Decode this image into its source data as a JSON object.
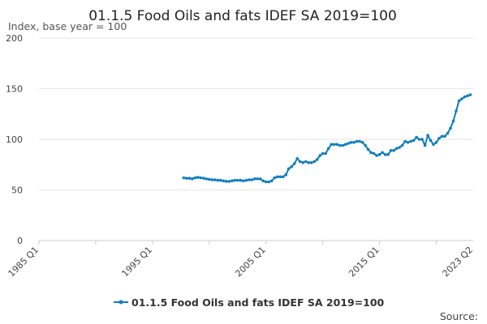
{
  "chart_data": {
    "type": "line",
    "title": "01.1.5 Food Oils and fats IDEF SA 2019=100",
    "ylabel": "Index, base year = 100",
    "xlabel": "",
    "ylim": [
      0,
      200
    ],
    "y_ticks": [
      0,
      50,
      100,
      150,
      200
    ],
    "x_tick_labels": [
      "1985 Q1",
      "1995 Q1",
      "2005 Q1",
      "2015 Q1",
      "2023 Q2"
    ],
    "grid": true,
    "legend_position": "bottom",
    "series": [
      {
        "name": "01.1.5 Food Oils and fats IDEF SA 2019=100",
        "color": "#0f7ec0",
        "points": [
          [
            "1997 Q4",
            62
          ],
          [
            "1998 Q1",
            61.5
          ],
          [
            "1998 Q2",
            61.5
          ],
          [
            "1998 Q3",
            61
          ],
          [
            "1998 Q4",
            62
          ],
          [
            "1999 Q1",
            62.5
          ],
          [
            "1999 Q2",
            62
          ],
          [
            "1999 Q3",
            61.5
          ],
          [
            "1999 Q4",
            61
          ],
          [
            "2000 Q1",
            60.5
          ],
          [
            "2000 Q2",
            60
          ],
          [
            "2000 Q3",
            60
          ],
          [
            "2000 Q4",
            59.5
          ],
          [
            "2001 Q1",
            59.5
          ],
          [
            "2001 Q2",
            59
          ],
          [
            "2001 Q3",
            58.5
          ],
          [
            "2001 Q4",
            58.5
          ],
          [
            "2002 Q1",
            59
          ],
          [
            "2002 Q2",
            59.5
          ],
          [
            "2002 Q3",
            59.5
          ],
          [
            "2002 Q4",
            59.5
          ],
          [
            "2003 Q1",
            59
          ],
          [
            "2003 Q2",
            59.5
          ],
          [
            "2003 Q3",
            60
          ],
          [
            "2003 Q4",
            60
          ],
          [
            "2004 Q1",
            61
          ],
          [
            "2004 Q2",
            61
          ],
          [
            "2004 Q3",
            61
          ],
          [
            "2004 Q4",
            59
          ],
          [
            "2005 Q1",
            58
          ],
          [
            "2005 Q2",
            58
          ],
          [
            "2005 Q3",
            59
          ],
          [
            "2005 Q4",
            62
          ],
          [
            "2006 Q1",
            63
          ],
          [
            "2006 Q2",
            63
          ],
          [
            "2006 Q3",
            63
          ],
          [
            "2006 Q4",
            65
          ],
          [
            "2007 Q1",
            71
          ],
          [
            "2007 Q2",
            73
          ],
          [
            "2007 Q3",
            76
          ],
          [
            "2007 Q4",
            81
          ],
          [
            "2008 Q1",
            78
          ],
          [
            "2008 Q2",
            77
          ],
          [
            "2008 Q3",
            78
          ],
          [
            "2008 Q4",
            77
          ],
          [
            "2009 Q1",
            77
          ],
          [
            "2009 Q2",
            78
          ],
          [
            "2009 Q3",
            80
          ],
          [
            "2009 Q4",
            84
          ],
          [
            "2010 Q1",
            86
          ],
          [
            "2010 Q2",
            86
          ],
          [
            "2010 Q3",
            91
          ],
          [
            "2010 Q4",
            95
          ],
          [
            "2011 Q1",
            95
          ],
          [
            "2011 Q2",
            95
          ],
          [
            "2011 Q3",
            94
          ],
          [
            "2011 Q4",
            94
          ],
          [
            "2012 Q1",
            95
          ],
          [
            "2012 Q2",
            96
          ],
          [
            "2012 Q3",
            97
          ],
          [
            "2012 Q4",
            97
          ],
          [
            "2013 Q1",
            98
          ],
          [
            "2013 Q2",
            98
          ],
          [
            "2013 Q3",
            97
          ],
          [
            "2013 Q4",
            94
          ],
          [
            "2014 Q1",
            90
          ],
          [
            "2014 Q2",
            87
          ],
          [
            "2014 Q3",
            86
          ],
          [
            "2014 Q4",
            84
          ],
          [
            "2015 Q1",
            85
          ],
          [
            "2015 Q2",
            87
          ],
          [
            "2015 Q3",
            85
          ],
          [
            "2015 Q4",
            85
          ],
          [
            "2016 Q1",
            89
          ],
          [
            "2016 Q2",
            89
          ],
          [
            "2016 Q3",
            91
          ],
          [
            "2016 Q4",
            92
          ],
          [
            "2017 Q1",
            94
          ],
          [
            "2017 Q2",
            98
          ],
          [
            "2017 Q3",
            97
          ],
          [
            "2017 Q4",
            98
          ],
          [
            "2018 Q1",
            99
          ],
          [
            "2018 Q2",
            102
          ],
          [
            "2018 Q3",
            100
          ],
          [
            "2018 Q4",
            100
          ],
          [
            "2019 Q1",
            94
          ],
          [
            "2019 Q2",
            104
          ],
          [
            "2019 Q3",
            99
          ],
          [
            "2019 Q4",
            95
          ],
          [
            "2020 Q1",
            97
          ],
          [
            "2020 Q2",
            101
          ],
          [
            "2020 Q3",
            103
          ],
          [
            "2020 Q4",
            103
          ],
          [
            "2021 Q1",
            106
          ],
          [
            "2021 Q2",
            111
          ],
          [
            "2021 Q3",
            118
          ],
          [
            "2021 Q4",
            128
          ],
          [
            "2022 Q1",
            138
          ],
          [
            "2022 Q2",
            140
          ],
          [
            "2022 Q3",
            142
          ],
          [
            "2022 Q4",
            143
          ],
          [
            "2023 Q1",
            144
          ]
        ]
      }
    ]
  },
  "footer": {
    "source": "Source:"
  }
}
